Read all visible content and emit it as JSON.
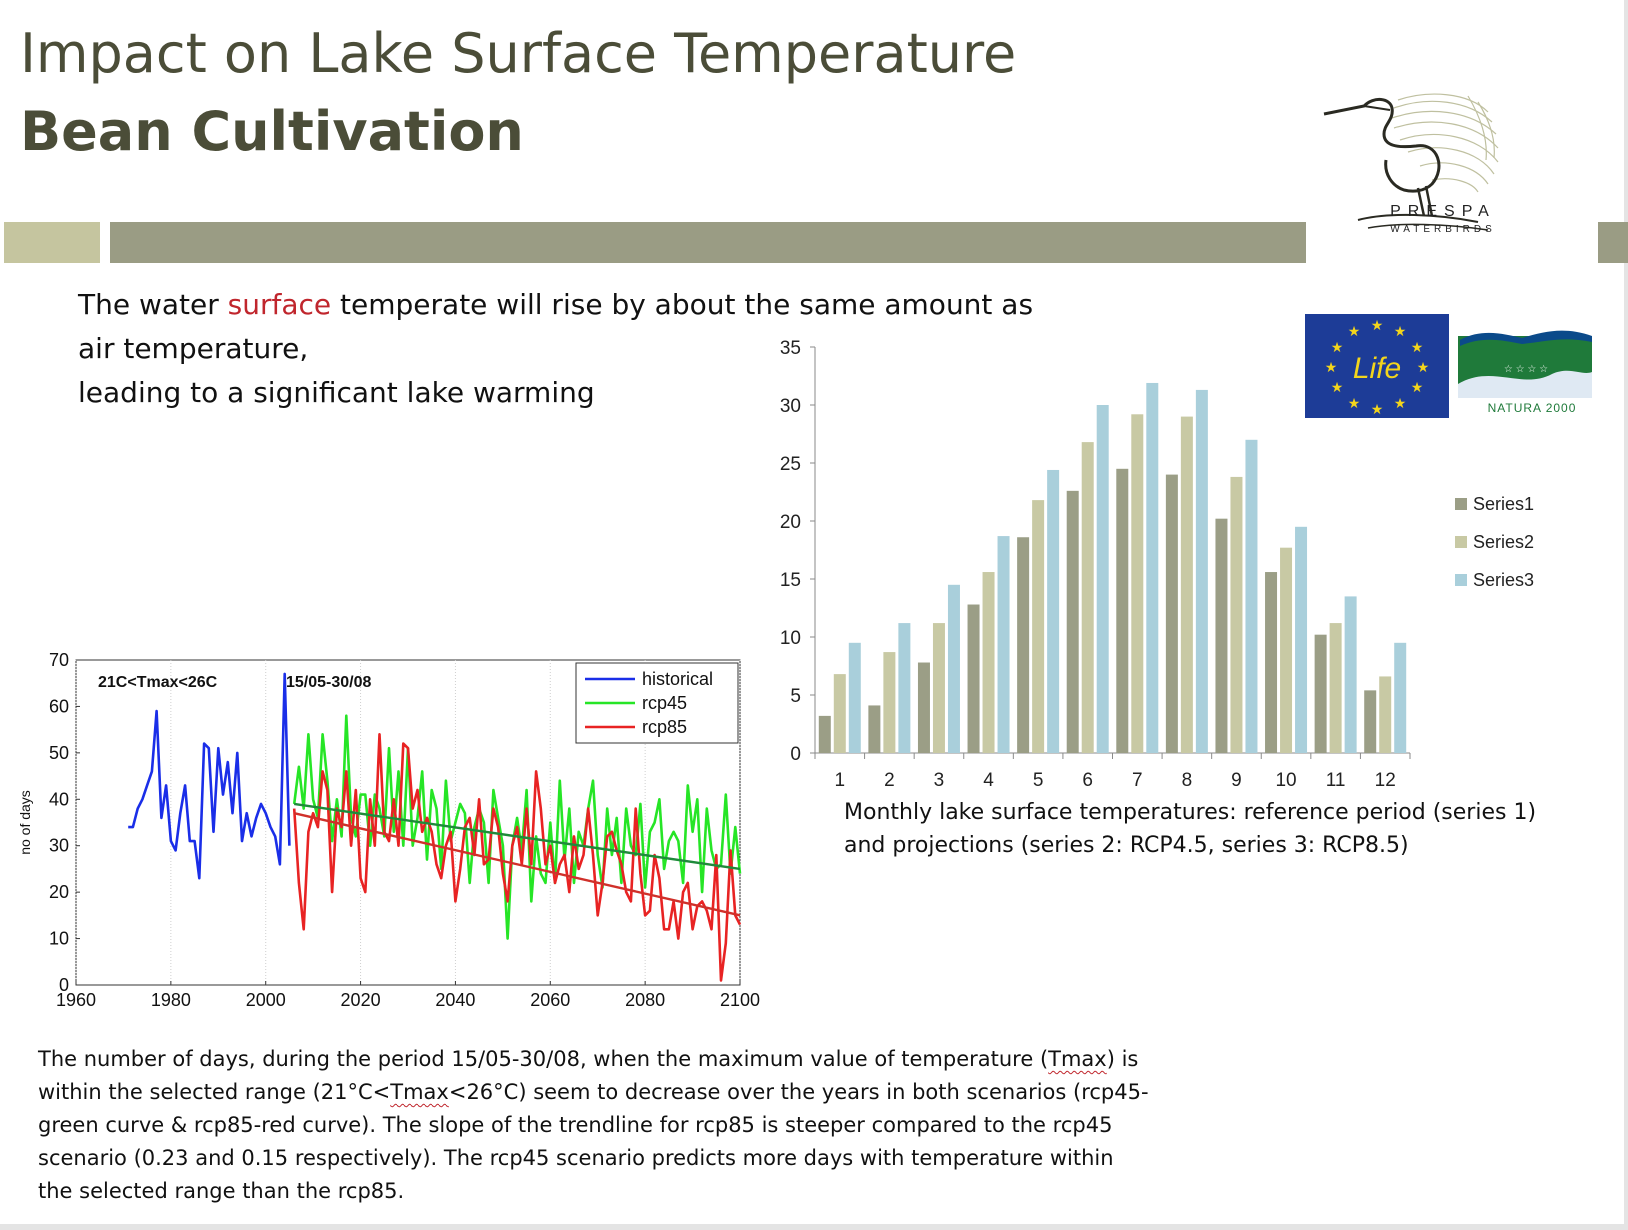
{
  "slide": {
    "title_line1": "Impact on Lake Surface Temperature",
    "title_line2": "Bean Cultivation",
    "body_line1_pre": "The water ",
    "body_line1_highlight": "surface",
    "body_line1_post": " temperate will rise by about the same amount as",
    "body_line2": "air temperature,",
    "body_line3": "leading to a significant lake warming",
    "bar_caption_line1": "Monthly lake surface temperatures: reference period (series 1)",
    "bar_caption_line2": "and projections (series 2: RCP4.5, series 3: RCP8.5)",
    "bottom_l1_a": "The number of days, during the period 15/05-30/08, when the maximum value of temperature (",
    "bottom_l1_b": "Tmax",
    "bottom_l1_c": ") is",
    "bottom_l2_a": "within the selected range (21°C<",
    "bottom_l2_b": "Tmax",
    "bottom_l2_c": "<26°C) seem to decrease over the years in both scenarios (rcp45-",
    "bottom_l3": "green curve & rcp85-red curve). The slope of the trendline for rcp85 is steeper compared to the rcp45",
    "bottom_l4": "scenario (0.23 and 0.15 respectively). The rcp45 scenario predicts more days with temperature within",
    "bottom_l5": "the selected range than the rcp85.",
    "accent_color": "#c0262d",
    "band_color": "#9a9c84",
    "band_light_color": "#c5c59f"
  },
  "logos": {
    "prespa_line1": "PRESPA",
    "prespa_line2": "WATERBIRDS",
    "life_text": "Life",
    "natura_text": "NATURA 2000",
    "icons": [
      "heron-icon",
      "eu-stars-icon",
      "natura-birds-icon"
    ]
  },
  "chart_data": [
    {
      "type": "bar",
      "categories": [
        "1",
        "2",
        "3",
        "4",
        "5",
        "6",
        "7",
        "8",
        "9",
        "10",
        "11",
        "12"
      ],
      "series": [
        {
          "name": "Series1",
          "color": "#9b9e86",
          "values": [
            3.2,
            4.1,
            7.8,
            12.8,
            18.6,
            22.6,
            24.5,
            24.0,
            20.2,
            15.6,
            10.2,
            5.4
          ]
        },
        {
          "name": "Series2",
          "color": "#c8c9a4",
          "values": [
            6.8,
            8.7,
            11.2,
            15.6,
            21.8,
            26.8,
            29.2,
            29.0,
            23.8,
            17.7,
            11.2,
            6.6
          ]
        },
        {
          "name": "Series3",
          "color": "#a9cfdb",
          "values": [
            9.5,
            11.2,
            14.5,
            18.7,
            24.4,
            30.0,
            31.9,
            31.3,
            27.0,
            19.5,
            13.5,
            9.5
          ]
        }
      ],
      "ylim": [
        0,
        35
      ],
      "yticks": [
        "0",
        "5",
        "10",
        "15",
        "20",
        "25",
        "30",
        "35"
      ],
      "legend": "right",
      "grid": false
    },
    {
      "type": "line",
      "annotation_range": "21C<Tmax<26C",
      "annotation_period": "15/05-30/08",
      "ylabel": "no of days",
      "xlim": [
        1960,
        2100
      ],
      "ylim": [
        0,
        70
      ],
      "xticks": [
        "1960",
        "1980",
        "2000",
        "2020",
        "2040",
        "2060",
        "2080",
        "2100"
      ],
      "yticks": [
        "0",
        "10",
        "20",
        "30",
        "40",
        "50",
        "60",
        "70"
      ],
      "legend": "top-right",
      "grid": true,
      "series": [
        {
          "name": "historical",
          "color": "#1a2ee8",
          "x": [
            1971,
            1972,
            1973,
            1974,
            1975,
            1976,
            1977,
            1978,
            1979,
            1980,
            1981,
            1982,
            1983,
            1984,
            1985,
            1986,
            1987,
            1988,
            1989,
            1990,
            1991,
            1992,
            1993,
            1994,
            1995,
            1996,
            1997,
            1998,
            1999,
            2000,
            2001,
            2002,
            2003,
            2004,
            2005
          ],
          "y": [
            34,
            34,
            38,
            40,
            43,
            46,
            59,
            36,
            43,
            31,
            29,
            37,
            43,
            31,
            31,
            23,
            52,
            51,
            33,
            51,
            41,
            48,
            37,
            50,
            31,
            37,
            32,
            36,
            39,
            37,
            34,
            32,
            26,
            67,
            30
          ]
        },
        {
          "name": "rcp45",
          "color": "#26e526",
          "x": [
            2006,
            2007,
            2008,
            2009,
            2010,
            2011,
            2012,
            2013,
            2014,
            2015,
            2016,
            2017,
            2018,
            2019,
            2020,
            2021,
            2022,
            2023,
            2024,
            2025,
            2026,
            2027,
            2028,
            2029,
            2030,
            2031,
            2032,
            2033,
            2034,
            2035,
            2036,
            2037,
            2038,
            2039,
            2040,
            2041,
            2042,
            2043,
            2044,
            2045,
            2046,
            2047,
            2048,
            2049,
            2050,
            2051,
            2052,
            2053,
            2054,
            2055,
            2056,
            2057,
            2058,
            2059,
            2060,
            2061,
            2062,
            2063,
            2064,
            2065,
            2066,
            2067,
            2068,
            2069,
            2070,
            2071,
            2072,
            2073,
            2074,
            2075,
            2076,
            2077,
            2078,
            2079,
            2080,
            2081,
            2082,
            2083,
            2084,
            2085,
            2086,
            2087,
            2088,
            2089,
            2090,
            2091,
            2092,
            2093,
            2094,
            2095,
            2096,
            2097,
            2098,
            2099,
            2100
          ],
          "y": [
            39,
            47,
            38,
            54,
            40,
            36,
            54,
            44,
            31,
            40,
            32,
            58,
            36,
            32,
            41,
            41,
            30,
            41,
            38,
            32,
            51,
            33,
            46,
            30,
            51,
            30,
            36,
            46,
            27,
            42,
            38,
            25,
            44,
            31,
            35,
            39,
            37,
            22,
            34,
            38,
            35,
            22,
            42,
            36,
            30,
            10,
            30,
            36,
            29,
            42,
            18,
            32,
            24,
            22,
            35,
            22,
            44,
            27,
            38,
            22,
            33,
            30,
            38,
            44,
            28,
            21,
            38,
            28,
            36,
            22,
            38,
            30,
            28,
            39,
            21,
            33,
            35,
            40,
            25,
            31,
            33,
            31,
            22,
            43,
            33,
            40,
            20,
            38,
            29,
            25,
            26,
            41,
            24,
            34,
            24
          ]
        },
        {
          "name": "rcp85",
          "color": "#e82323",
          "x": [
            2006,
            2007,
            2008,
            2009,
            2010,
            2011,
            2012,
            2013,
            2014,
            2015,
            2016,
            2017,
            2018,
            2019,
            2020,
            2021,
            2022,
            2023,
            2024,
            2025,
            2026,
            2027,
            2028,
            2029,
            2030,
            2031,
            2032,
            2033,
            2034,
            2035,
            2036,
            2037,
            2038,
            2039,
            2040,
            2041,
            2042,
            2043,
            2044,
            2045,
            2046,
            2047,
            2048,
            2049,
            2050,
            2051,
            2052,
            2053,
            2054,
            2055,
            2056,
            2057,
            2058,
            2059,
            2060,
            2061,
            2062,
            2063,
            2064,
            2065,
            2066,
            2067,
            2068,
            2069,
            2070,
            2071,
            2072,
            2073,
            2074,
            2075,
            2076,
            2077,
            2078,
            2079,
            2080,
            2081,
            2082,
            2083,
            2084,
            2085,
            2086,
            2087,
            2088,
            2089,
            2090,
            2091,
            2092,
            2093,
            2094,
            2095,
            2096,
            2097,
            2098,
            2099,
            2100
          ],
          "y": [
            38,
            22,
            12,
            33,
            37,
            34,
            46,
            42,
            20,
            38,
            34,
            46,
            30,
            42,
            23,
            20,
            40,
            30,
            54,
            33,
            31,
            40,
            30,
            52,
            51,
            38,
            42,
            33,
            36,
            33,
            26,
            23,
            30,
            33,
            18,
            25,
            34,
            36,
            28,
            40,
            26,
            27,
            38,
            34,
            24,
            18,
            30,
            34,
            26,
            38,
            26,
            46,
            38,
            26,
            30,
            22,
            26,
            28,
            20,
            32,
            25,
            28,
            38,
            28,
            15,
            22,
            32,
            33,
            29,
            26,
            20,
            18,
            38,
            24,
            15,
            16,
            28,
            23,
            12,
            12,
            18,
            10,
            20,
            22,
            12,
            17,
            18,
            16,
            12,
            28,
            1,
            9,
            29,
            15,
            13
          ]
        }
      ],
      "trendlines": [
        {
          "name": "rcp45 trend",
          "color": "#1f8a3a",
          "x": [
            2006,
            2100
          ],
          "y": [
            39,
            25
          ]
        },
        {
          "name": "rcp85 trend",
          "color": "#d0302a",
          "x": [
            2006,
            2100
          ],
          "y": [
            37,
            15
          ]
        }
      ]
    }
  ]
}
